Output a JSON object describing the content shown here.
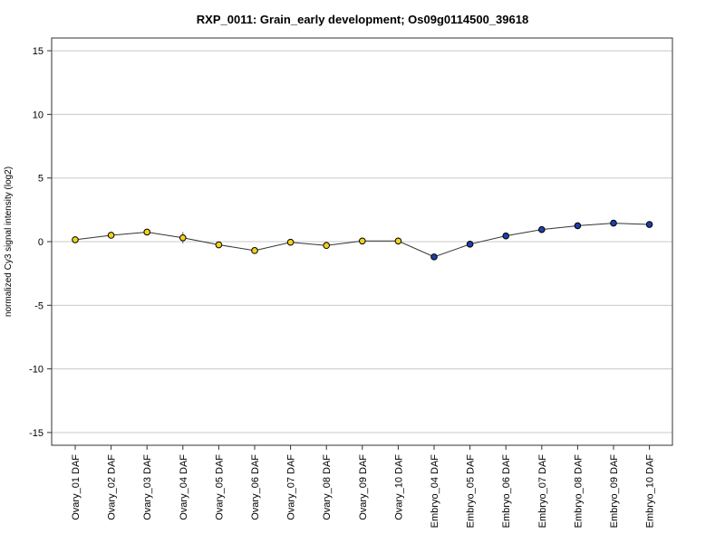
{
  "chart_data": {
    "type": "line",
    "title": "RXP_0011: Grain_early development; Os09g0114500_39618",
    "xlabel": "",
    "ylabel": "normalized Cy3 signal intensity (log2)",
    "ylim": [
      -16,
      16
    ],
    "yticks": [
      15,
      10,
      5,
      0,
      -5,
      -10,
      -15
    ],
    "grid": true,
    "categories": [
      "Ovary_01 DAF",
      "Ovary_02 DAF",
      "Ovary_03 DAF",
      "Ovary_04 DAF",
      "Ovary_05 DAF",
      "Ovary_06 DAF",
      "Ovary_07 DAF",
      "Ovary_08 DAF",
      "Ovary_09 DAF",
      "Ovary_10 DAF",
      "Embryo_04 DAF",
      "Embryo_05 DAF",
      "Embryo_06 DAF",
      "Embryo_07 DAF",
      "Embryo_08 DAF",
      "Embryo_09 DAF",
      "Embryo_10 DAF"
    ],
    "values": [
      0.15,
      0.5,
      0.75,
      0.3,
      -0.25,
      -0.7,
      -0.05,
      -0.3,
      0.05,
      0.05,
      -1.2,
      -0.2,
      0.45,
      0.95,
      1.25,
      1.45,
      1.35
    ],
    "error": [
      0.1,
      0.15,
      0.1,
      0.45,
      0.1,
      0.1,
      0.1,
      0.1,
      0.1,
      0.1,
      0.1,
      0.1,
      0.1,
      0.1,
      0.1,
      0.1,
      0.1
    ],
    "point_colors": [
      "#f2d21b",
      "#f2d21b",
      "#f2d21b",
      "#f2d21b",
      "#f2d21b",
      "#f2d21b",
      "#f2d21b",
      "#f2d21b",
      "#f2d21b",
      "#f2d21b",
      "#1f3fa8",
      "#1f3fa8",
      "#1f3fa8",
      "#1f3fa8",
      "#1f3fa8",
      "#1f3fa8",
      "#1f3fa8"
    ],
    "line_color": "#333333",
    "grid_color": "#c8c8c8"
  }
}
